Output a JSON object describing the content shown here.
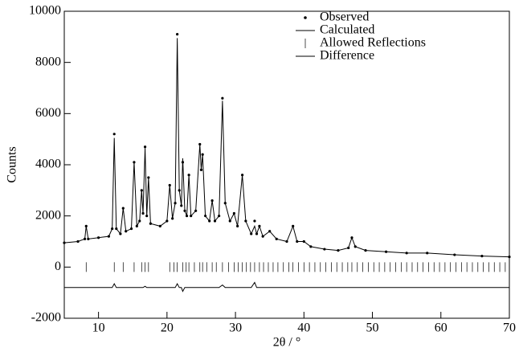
{
  "chart_data": {
    "type": "rietveld",
    "xlabel": "2θ / °",
    "ylabel": "Counts",
    "xlim": [
      5,
      70
    ],
    "xticks": [
      10,
      20,
      30,
      40,
      50,
      60,
      70
    ],
    "ylim": [
      -2000,
      10000
    ],
    "yticks": [
      -2000,
      0,
      2000,
      4000,
      6000,
      8000,
      10000
    ],
    "legend": "top-right",
    "x": [
      5,
      7,
      8,
      8.2,
      8.5,
      10,
      11.5,
      12,
      12.3,
      12.6,
      13.2,
      13.6,
      14,
      14.8,
      15.2,
      15.6,
      16,
      16.3,
      16.5,
      16.8,
      17.05,
      17.3,
      17.6,
      19,
      20,
      20.4,
      20.8,
      21.2,
      21.5,
      21.8,
      22.1,
      22.3,
      22.6,
      22.9,
      23.2,
      23.5,
      24.2,
      24.8,
      25.0,
      25.2,
      25.6,
      26.2,
      26.6,
      27.0,
      27.6,
      28.1,
      28.5,
      29.2,
      29.8,
      30.3,
      31.0,
      31.5,
      32.3,
      32.8,
      33.1,
      33.5,
      34,
      35,
      36,
      37.5,
      38.4,
      39,
      40,
      41,
      43,
      45,
      46.5,
      47,
      47.5,
      49,
      52,
      55,
      58,
      62,
      66,
      70
    ],
    "series": [
      {
        "name": "Observed",
        "color": "#000000",
        "style": "dots",
        "values": [
          950,
          1000,
          1100,
          1600,
          1100,
          1150,
          1200,
          1500,
          5200,
          1500,
          1300,
          2300,
          1400,
          1500,
          4100,
          1600,
          1800,
          3000,
          2100,
          4700,
          2000,
          3500,
          1700,
          1600,
          1800,
          3200,
          1900,
          2500,
          9100,
          3000,
          2400,
          4100,
          2200,
          2000,
          3600,
          2000,
          2200,
          4800,
          3800,
          4400,
          2000,
          1800,
          2600,
          1800,
          2000,
          6600,
          2500,
          1800,
          2100,
          1600,
          3600,
          1800,
          1300,
          1800,
          1300,
          1600,
          1200,
          1400,
          1100,
          1000,
          1600,
          1000,
          1000,
          800,
          700,
          650,
          750,
          1150,
          800,
          650,
          600,
          550,
          550,
          480,
          430,
          400
        ]
      },
      {
        "name": "Calculated",
        "color": "#000000",
        "style": "line",
        "values": [
          950,
          1000,
          1100,
          1600,
          1100,
          1150,
          1200,
          1500,
          5050,
          1500,
          1300,
          2300,
          1400,
          1500,
          4100,
          1600,
          1800,
          3000,
          2100,
          4650,
          2000,
          3500,
          1700,
          1600,
          1800,
          3200,
          1900,
          2500,
          8950,
          3000,
          2400,
          4250,
          2200,
          2000,
          3600,
          2000,
          2200,
          4800,
          3800,
          4400,
          2000,
          1800,
          2600,
          1800,
          2000,
          6500,
          2500,
          1800,
          2100,
          1600,
          3600,
          1800,
          1300,
          1600,
          1300,
          1600,
          1200,
          1400,
          1100,
          1000,
          1600,
          1000,
          1000,
          800,
          700,
          650,
          750,
          1150,
          800,
          650,
          600,
          550,
          550,
          480,
          430,
          400
        ]
      },
      {
        "name": "Allowed Reflections",
        "color": "#000000",
        "style": "ticks",
        "y": 0,
        "x": [
          8.2,
          12.3,
          13.6,
          15.2,
          16.3,
          16.8,
          17.3,
          20.4,
          21.0,
          21.5,
          22.3,
          22.8,
          23.2,
          24.0,
          24.8,
          25.2,
          25.8,
          26.6,
          27.2,
          28.1,
          29.0,
          29.8,
          30.4,
          31.0,
          31.6,
          32.2,
          32.8,
          33.5,
          34.1,
          34.8,
          35.5,
          36.2,
          37.0,
          37.8,
          38.4,
          39.2,
          40.0,
          40.8,
          41.6,
          42.4,
          43.2,
          44.0,
          44.8,
          45.6,
          46.4,
          47.0,
          47.8,
          48.6,
          49.4,
          50.2,
          51.0,
          51.8,
          52.6,
          53.4,
          54.2,
          55.0,
          55.8,
          56.6,
          57.4,
          58.2,
          59.0,
          59.8,
          60.6,
          61.4,
          62.2,
          63.0,
          63.8,
          64.6,
          65.4,
          66.2,
          67.0,
          67.8,
          68.6,
          69.4
        ]
      },
      {
        "name": "Difference",
        "color": "#000000",
        "style": "line",
        "values": [
          -800,
          -800,
          -800,
          -800,
          -800,
          -800,
          -800,
          -800,
          -650,
          -800,
          -800,
          -800,
          -800,
          -800,
          -800,
          -800,
          -800,
          -800,
          -800,
          -750,
          -800,
          -800,
          -800,
          -800,
          -800,
          -800,
          -800,
          -800,
          -650,
          -800,
          -800,
          -950,
          -800,
          -800,
          -800,
          -800,
          -800,
          -800,
          -800,
          -800,
          -800,
          -800,
          -800,
          -800,
          -800,
          -700,
          -800,
          -800,
          -800,
          -800,
          -800,
          -800,
          -800,
          -600,
          -800,
          -800,
          -800,
          -800,
          -800,
          -800,
          -800,
          -800,
          -800,
          -800,
          -800,
          -800,
          -800,
          -800,
          -800,
          -800,
          -800,
          -800,
          -800,
          -800,
          -800,
          -800
        ]
      }
    ]
  }
}
